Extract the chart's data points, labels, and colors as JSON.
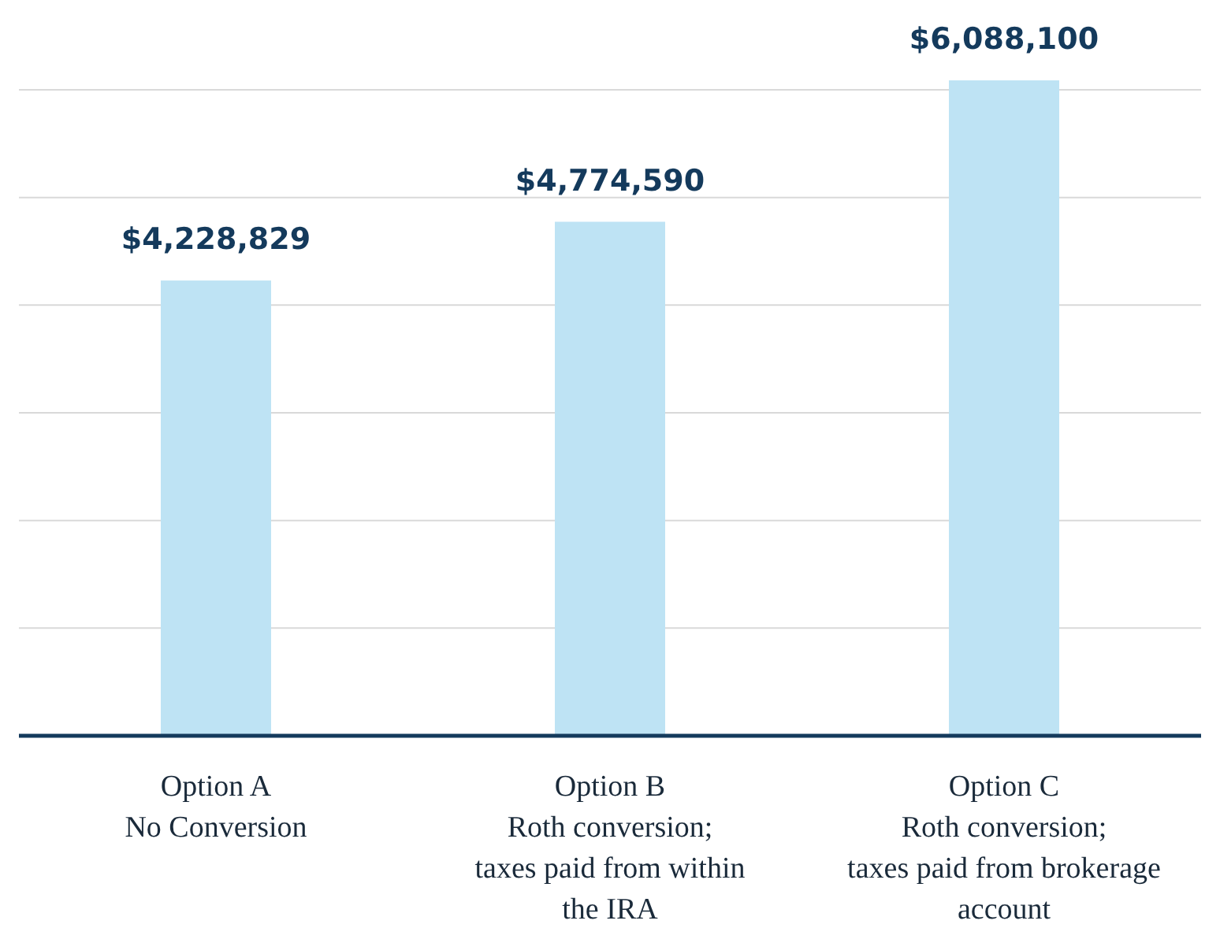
{
  "chart_data": {
    "type": "bar",
    "categories": [
      "Option A\nNo Conversion",
      "Option B\nRoth conversion;\ntaxes paid from within\nthe IRA",
      "Option C\nRoth conversion;\ntaxes paid from brokerage\naccount"
    ],
    "values": [
      4228829,
      4774590,
      6088100
    ],
    "color": "#bee3f4",
    "grid": "y",
    "value_labels": [
      "$4,228,829",
      "$4,774,590",
      "$6,088,100"
    ]
  }
}
